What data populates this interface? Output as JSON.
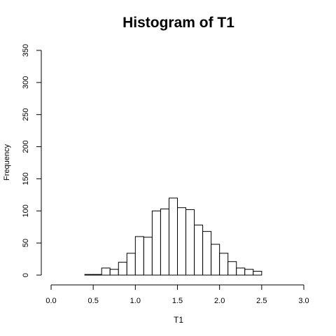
{
  "chart_data": {
    "type": "bar",
    "title": "Histogram of T1",
    "xlabel": "T1",
    "ylabel": "Frequency",
    "xlim": [
      0,
      3
    ],
    "ylim": [
      0,
      350
    ],
    "x_ticks": [
      "0.0",
      "0.5",
      "1.0",
      "1.5",
      "2.0",
      "2.5",
      "3.0"
    ],
    "y_ticks": [
      "0",
      "50",
      "100",
      "150",
      "200",
      "250",
      "300",
      "350"
    ],
    "bin_width": 0.1,
    "bins": [
      {
        "start": 0.4,
        "end": 0.5,
        "count": 1
      },
      {
        "start": 0.5,
        "end": 0.6,
        "count": 1
      },
      {
        "start": 0.6,
        "end": 0.7,
        "count": 11
      },
      {
        "start": 0.7,
        "end": 0.8,
        "count": 9
      },
      {
        "start": 0.8,
        "end": 0.9,
        "count": 20
      },
      {
        "start": 0.9,
        "end": 1.0,
        "count": 34
      },
      {
        "start": 1.0,
        "end": 1.1,
        "count": 60
      },
      {
        "start": 1.1,
        "end": 1.2,
        "count": 59
      },
      {
        "start": 1.2,
        "end": 1.3,
        "count": 100
      },
      {
        "start": 1.3,
        "end": 1.4,
        "count": 103
      },
      {
        "start": 1.4,
        "end": 1.5,
        "count": 120
      },
      {
        "start": 1.5,
        "end": 1.6,
        "count": 105
      },
      {
        "start": 1.6,
        "end": 1.7,
        "count": 102
      },
      {
        "start": 1.7,
        "end": 1.8,
        "count": 78
      },
      {
        "start": 1.8,
        "end": 1.9,
        "count": 68
      },
      {
        "start": 1.9,
        "end": 2.0,
        "count": 48
      },
      {
        "start": 2.0,
        "end": 2.1,
        "count": 34
      },
      {
        "start": 2.1,
        "end": 2.2,
        "count": 21
      },
      {
        "start": 2.2,
        "end": 2.3,
        "count": 11
      },
      {
        "start": 2.3,
        "end": 2.4,
        "count": 9
      },
      {
        "start": 2.4,
        "end": 2.5,
        "count": 6
      }
    ],
    "grid": false,
    "bar_fill": "#ffffff",
    "bar_stroke": "#000000"
  }
}
